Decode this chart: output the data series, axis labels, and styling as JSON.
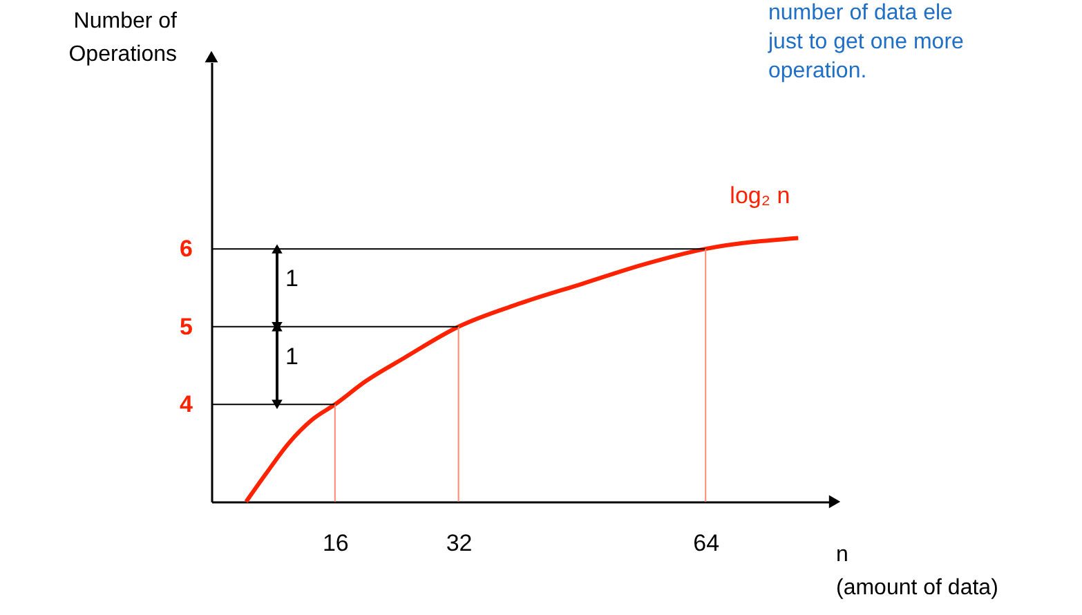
{
  "chart_data": {
    "type": "line",
    "xlabel": "n\n(amount of data)",
    "ylabel": "Number of\nOperations",
    "xlim": [
      0,
      80
    ],
    "ylim": [
      2.75,
      8.4
    ],
    "xticks": [
      16,
      32,
      64
    ],
    "yticks": [
      4,
      5,
      6
    ],
    "grid": false,
    "legend": false,
    "marker": "none",
    "line_style": "solid",
    "series": [
      {
        "name": "log₂ n",
        "color": "#ff2200",
        "x": [
          4.5,
          7,
          10,
          13,
          16,
          20,
          25,
          32,
          40,
          48,
          56,
          64,
          76
        ],
        "values": [
          2.75,
          3.1,
          3.5,
          3.8,
          4,
          4.3,
          4.6,
          5,
          5.3,
          5.55,
          5.8,
          6,
          6.14
        ]
      },
      {
        "type": "line",
        "color": "#000000",
        "x": [
          0,
          16
        ],
        "values": [
          4,
          4
        ]
      },
      {
        "type": "line",
        "color": "#000000",
        "x": [
          0,
          32
        ],
        "values": [
          5,
          5
        ]
      },
      {
        "type": "line",
        "color": "#000000",
        "x": [
          0,
          64
        ],
        "values": [
          6,
          6
        ]
      },
      {
        "type": "line",
        "color": "#ff8a70",
        "x": [
          16,
          16
        ],
        "values": [
          2.75,
          4
        ]
      },
      {
        "type": "line",
        "color": "#ff8a70",
        "x": [
          32,
          32
        ],
        "values": [
          2.75,
          5
        ]
      },
      {
        "type": "line",
        "color": "#ff8a70",
        "x": [
          64,
          64
        ],
        "values": [
          2.75,
          6
        ]
      }
    ],
    "annotations": [
      {
        "text": "1",
        "x": 8.5,
        "y": 5
      },
      {
        "text": "1",
        "x": 8.5,
        "y": 6
      },
      "number of data ele\njust to get one more\noperation."
    ]
  }
}
